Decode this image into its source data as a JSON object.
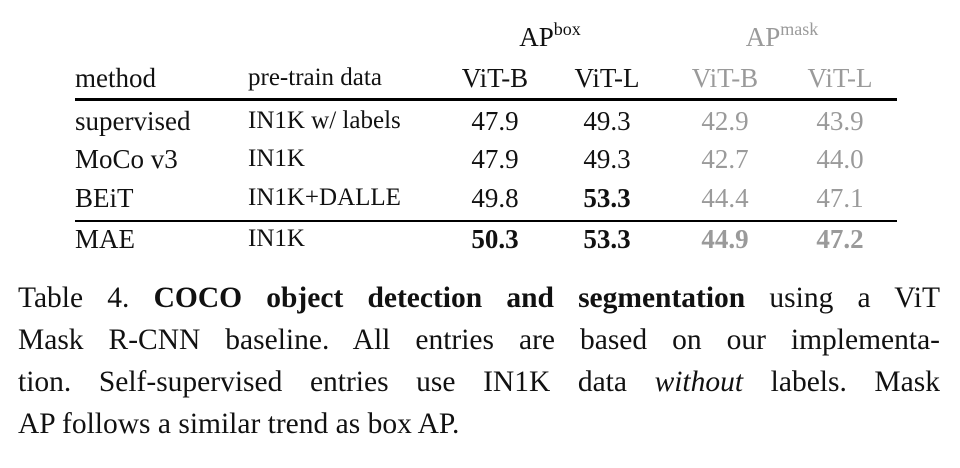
{
  "table": {
    "groups": [
      {
        "label": "AP",
        "sup": "box"
      },
      {
        "label": "AP",
        "sup": "mask"
      }
    ],
    "columns": [
      "method",
      "pre-train data",
      "ViT-B",
      "ViT-L",
      "ViT-B",
      "ViT-L"
    ],
    "rows": [
      [
        "supervised",
        "IN1K w/ labels",
        "47.9",
        "49.3",
        "42.9",
        "43.9"
      ],
      [
        "MoCo v3",
        "IN1K",
        "47.9",
        "49.3",
        "42.7",
        "44.0"
      ],
      [
        "BEiT",
        "IN1K+DALLE",
        "49.8",
        "53.3",
        "44.4",
        "47.1"
      ],
      [
        "MAE",
        "IN1K",
        "50.3",
        "53.3",
        "44.9",
        "47.2"
      ]
    ]
  },
  "caption": {
    "lines": [
      [
        "Table 4. ",
        "COCO object detection and segmentation",
        " using a ViT"
      ],
      [
        "Mask R-CNN baseline. All entries are based on our implementa-"
      ],
      [
        "tion. Self-supervised entries use IN1K data ",
        "without",
        " labels. Mask"
      ],
      [
        "AP follows a similar trend as box AP."
      ]
    ]
  }
}
